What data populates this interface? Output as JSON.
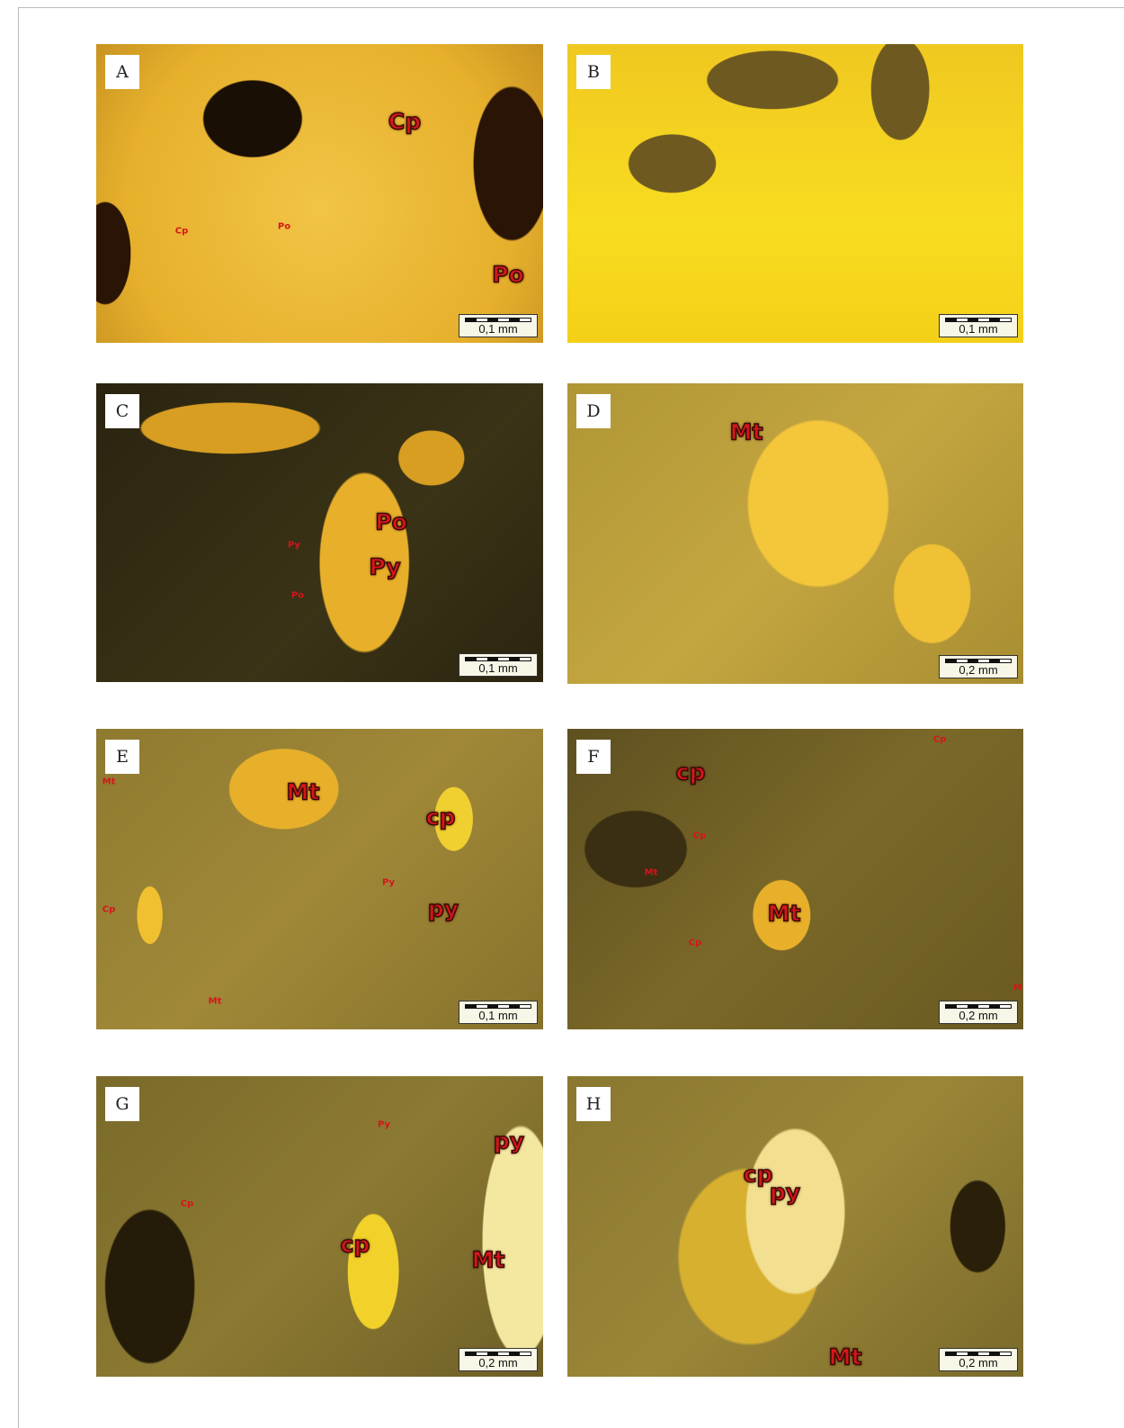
{
  "panels": [
    {
      "letter": "A",
      "scale_bar": "0,1 mm",
      "labels": [
        "Cp",
        "Cp",
        "Po",
        "Po"
      ]
    },
    {
      "letter": "B",
      "scale_bar": "0,1 mm",
      "labels": []
    },
    {
      "letter": "C",
      "scale_bar": "0,1 mm",
      "labels": [
        "Po",
        "Py",
        "Py",
        "Po"
      ]
    },
    {
      "letter": "D",
      "scale_bar": "0,2 mm",
      "labels": [
        "Mt"
      ]
    },
    {
      "letter": "E",
      "scale_bar": "0,1 mm",
      "labels": [
        "Mt",
        "Mt",
        "cp",
        "Cp",
        "Py",
        "py",
        "Mt"
      ]
    },
    {
      "letter": "F",
      "scale_bar": "0,2 mm",
      "labels": [
        "Cp",
        "cp",
        "Cp",
        "Mt",
        "Mt",
        "Cp",
        "M"
      ]
    },
    {
      "letter": "G",
      "scale_bar": "0,2 mm",
      "labels": [
        "Py",
        "py",
        "Cp",
        "cp",
        "Mt"
      ]
    },
    {
      "letter": "H",
      "scale_bar": "0,2 mm",
      "labels": [
        "cp",
        "py",
        "Mt"
      ]
    }
  ]
}
